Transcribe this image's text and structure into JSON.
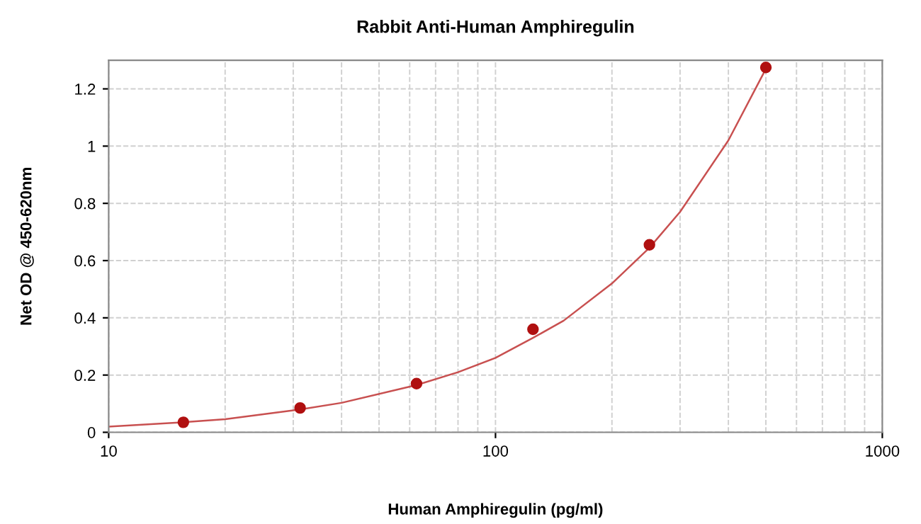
{
  "chart_data": {
    "type": "scatter",
    "title": "Rabbit Anti-Human Amphiregulin",
    "xlabel": "Human Amphiregulin (pg/ml)",
    "ylabel": "Net OD @ 450-620nm",
    "log": "x",
    "xlim": [
      10,
      1000
    ],
    "xticks": [
      10,
      100,
      1000
    ],
    "ylim": [
      0,
      1.3
    ],
    "yticks": [
      0,
      0.2,
      0.4,
      0.6,
      0.8,
      1,
      1.2
    ],
    "grid": true,
    "series": [
      {
        "marker": "circle",
        "color": "#b01010",
        "x": [
          15.6,
          31.25,
          62.5,
          125,
          250,
          500
        ],
        "values": [
          0.035,
          0.085,
          0.17,
          0.36,
          0.655,
          1.275
        ]
      },
      {
        "type": "line",
        "marker": "none",
        "color": "#c85050",
        "x": [
          10,
          15.6,
          20,
          31.25,
          40,
          62.5,
          80,
          100,
          125,
          150,
          200,
          250,
          300,
          400,
          500
        ],
        "values": [
          0.02,
          0.035,
          0.046,
          0.08,
          0.103,
          0.165,
          0.21,
          0.26,
          0.33,
          0.39,
          0.52,
          0.645,
          0.77,
          1.02,
          1.27
        ]
      }
    ]
  }
}
